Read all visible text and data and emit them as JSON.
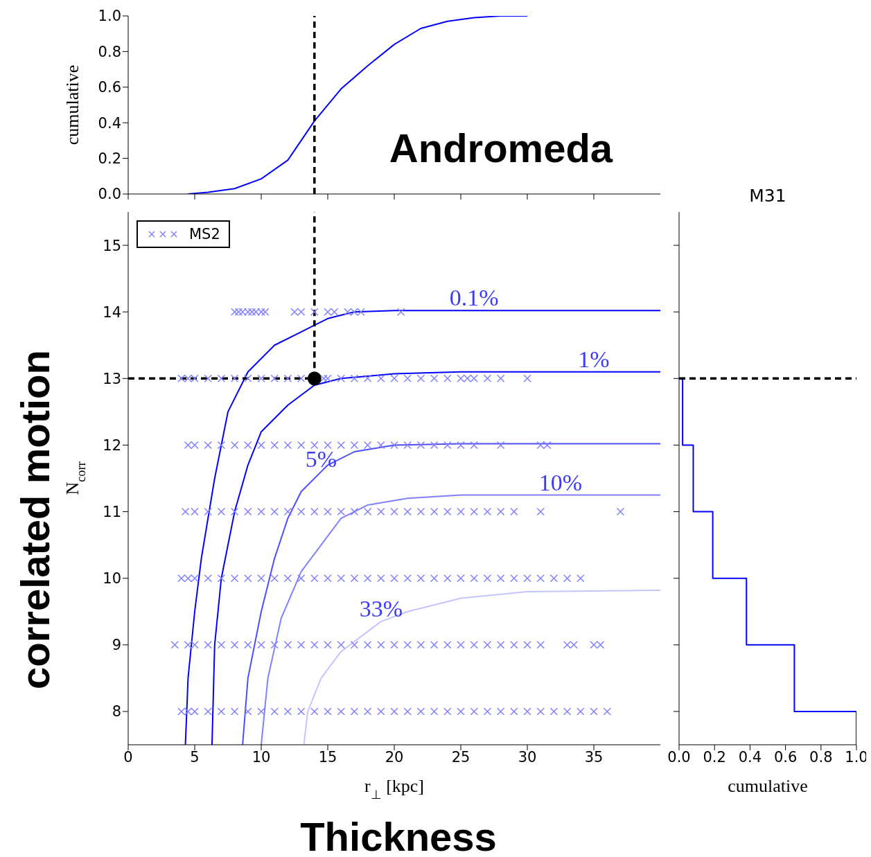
{
  "chart_data": [
    {
      "type": "line",
      "annotations": [
        "Andromeda"
      ],
      "ylabel": "cumulative",
      "x": [
        4.5,
        6,
        8,
        10,
        12,
        14,
        16,
        18,
        20,
        22,
        24,
        26,
        28,
        30
      ],
      "values": [
        0,
        0.01,
        0.03,
        0.085,
        0.19,
        0.41,
        0.59,
        0.72,
        0.84,
        0.93,
        0.97,
        0.99,
        1,
        1
      ],
      "color": "#0000ff",
      "xlim": [
        0,
        40
      ],
      "ylim": [
        0,
        1
      ],
      "xticks": [
        0,
        5,
        10,
        15,
        20,
        25,
        30,
        35
      ],
      "yticks": [
        {
          "value": 0,
          "label": "0.0"
        },
        {
          "value": 0.2,
          "label": "0.2"
        },
        {
          "value": 0.4,
          "label": "0.4"
        },
        {
          "value": 0.6,
          "label": "0.6"
        },
        {
          "value": 0.8,
          "label": "0.8"
        },
        {
          "value": 1,
          "label": "1.0"
        }
      ],
      "tick_labels": "y",
      "ref_lines": [
        {
          "axis": "x",
          "value": 14,
          "color": "#000000",
          "line_style": "dashed"
        }
      ]
    },
    {
      "type": "scatter",
      "xlabel": "r$_{⊥}$ [kpc]",
      "ylabel": "N$_{corr}$",
      "legend": "top left",
      "marker": "cross",
      "xlim": [
        0,
        40
      ],
      "ylim": [
        7.5,
        15.5
      ],
      "xticks": [
        0,
        5,
        10,
        15,
        20,
        25,
        30,
        35
      ],
      "yticks": [
        8,
        9,
        10,
        11,
        12,
        13,
        14,
        15
      ],
      "series": [
        {
          "name": "MS2",
          "color": "#8080ff",
          "x": [
            8,
            8.3,
            8.6,
            9,
            9.3,
            9.6,
            10,
            10.3,
            12.5,
            13,
            14,
            15,
            15.5,
            16.5,
            17,
            17.5,
            20.5
          ],
          "values": [
            14,
            14,
            14,
            14,
            14,
            14,
            14,
            14,
            14,
            14,
            14,
            14,
            14,
            14,
            14,
            14,
            14
          ]
        },
        {
          "color": "#8080ff",
          "x": [
            4,
            4.5,
            5,
            6,
            7,
            8,
            9,
            10,
            11,
            12,
            13,
            14.7,
            15,
            16,
            17,
            18,
            19,
            20,
            21,
            22,
            23,
            24,
            25,
            25.5,
            26,
            27,
            28,
            30
          ],
          "values": [
            13,
            13,
            13,
            13,
            13,
            13,
            13,
            13,
            13,
            13,
            13,
            13,
            13,
            13,
            13,
            13,
            13,
            13,
            13,
            13,
            13,
            13,
            13,
            13,
            13,
            13,
            13,
            13
          ]
        },
        {
          "color": "#8080ff",
          "x": [
            4.5,
            5,
            6,
            7,
            8,
            9,
            10,
            11,
            12,
            13,
            14,
            15,
            16,
            17,
            18,
            19,
            20,
            21,
            22,
            23,
            24,
            25,
            26,
            28,
            31,
            31.5
          ],
          "values": [
            12,
            12,
            12,
            12,
            12,
            12,
            12,
            12,
            12,
            12,
            12,
            12,
            12,
            12,
            12,
            12,
            12,
            12,
            12,
            12,
            12,
            12,
            12,
            12,
            12,
            12
          ]
        },
        {
          "color": "#8080ff",
          "x": [
            4.3,
            5,
            6,
            7,
            8,
            9,
            10,
            11,
            12,
            13,
            14,
            15,
            16,
            17,
            18,
            19,
            20,
            21,
            22,
            23,
            24,
            25,
            26,
            27,
            28,
            29,
            31,
            37
          ],
          "values": [
            11,
            11,
            11,
            11,
            11,
            11,
            11,
            11,
            11,
            11,
            11,
            11,
            11,
            11,
            11,
            11,
            11,
            11,
            11,
            11,
            11,
            11,
            11,
            11,
            11,
            11,
            11,
            11
          ]
        },
        {
          "color": "#8080ff",
          "x": [
            4,
            4.5,
            5,
            6,
            7,
            8,
            9,
            10,
            11,
            12,
            13,
            14,
            15,
            16,
            17,
            18,
            19,
            20,
            21,
            22,
            23,
            24,
            25,
            26,
            27,
            28,
            29,
            30,
            31,
            32,
            33,
            34
          ],
          "values": [
            10,
            10,
            10,
            10,
            10,
            10,
            10,
            10,
            10,
            10,
            10,
            10,
            10,
            10,
            10,
            10,
            10,
            10,
            10,
            10,
            10,
            10,
            10,
            10,
            10,
            10,
            10,
            10,
            10,
            10,
            10,
            10
          ]
        },
        {
          "color": "#8080ff",
          "x": [
            3.5,
            4.5,
            5,
            6,
            7,
            8,
            9,
            10,
            11,
            12,
            13,
            14,
            15,
            16,
            17,
            18,
            19,
            20,
            21,
            22,
            23,
            24,
            25,
            26,
            27,
            28,
            29,
            30,
            31,
            33,
            33.5,
            35,
            35.5
          ],
          "values": [
            9,
            9,
            9,
            9,
            9,
            9,
            9,
            9,
            9,
            9,
            9,
            9,
            9,
            9,
            9,
            9,
            9,
            9,
            9,
            9,
            9,
            9,
            9,
            9,
            9,
            9,
            9,
            9,
            9,
            9,
            9,
            9,
            9
          ]
        },
        {
          "color": "#8080ff",
          "x": [
            4,
            4.5,
            5,
            6,
            7,
            8,
            9,
            10,
            11,
            12,
            13,
            14,
            15,
            16,
            17,
            18,
            19,
            20,
            21,
            22,
            23,
            24,
            25,
            26,
            27,
            28,
            29,
            30,
            31,
            32,
            33,
            34,
            35,
            36
          ],
          "values": [
            8,
            8,
            8,
            8,
            8,
            8,
            8,
            8,
            8,
            8,
            8,
            8,
            8,
            8,
            8,
            8,
            8,
            8,
            8,
            8,
            8,
            8,
            8,
            8,
            8,
            8,
            8,
            8,
            8,
            8,
            8,
            8,
            8,
            8
          ]
        },
        {
          "type": "line",
          "marker": "none",
          "color": "#0000ff",
          "x": [
            4.3,
            4.5,
            5,
            5.5,
            6.5,
            7.5,
            9,
            11,
            13,
            14,
            15,
            17,
            20,
            25,
            30,
            40
          ],
          "values": [
            7.5,
            8.5,
            9.5,
            10.3,
            11.5,
            12.5,
            13.1,
            13.5,
            13.7,
            13.8,
            13.9,
            14,
            14.02,
            14.02,
            14.02,
            14.02
          ]
        },
        {
          "type": "line",
          "marker": "none",
          "color": "#0000ff",
          "x": [
            6.3,
            6.5,
            7,
            8,
            9,
            10,
            12,
            14,
            16,
            20,
            25,
            40
          ],
          "values": [
            7.5,
            9,
            10,
            11,
            11.7,
            12.2,
            12.6,
            12.9,
            13,
            13.07,
            13.1,
            13.1
          ]
        },
        {
          "type": "line",
          "marker": "none",
          "color": "#4d4dff",
          "x": [
            8.6,
            9,
            10,
            11,
            12,
            13,
            14.5,
            15,
            17,
            20,
            25,
            40
          ],
          "values": [
            7.5,
            8.5,
            9.5,
            10.3,
            10.9,
            11.3,
            11.6,
            11.7,
            11.9,
            12,
            12.02,
            12.02
          ]
        },
        {
          "type": "line",
          "marker": "none",
          "color": "#8080ff",
          "x": [
            10,
            10.5,
            11.5,
            13,
            14.5,
            16,
            18,
            21,
            25,
            40
          ],
          "values": [
            7.5,
            8.5,
            9.4,
            10.1,
            10.5,
            10.9,
            11.1,
            11.2,
            11.25,
            11.25
          ]
        },
        {
          "type": "line",
          "marker": "none",
          "color": "#c4c4ff",
          "x": [
            13.2,
            13.5,
            14.5,
            16,
            18,
            19,
            21,
            25,
            30,
            40
          ],
          "values": [
            7.5,
            8,
            8.5,
            8.9,
            9.2,
            9.35,
            9.5,
            9.7,
            9.8,
            9.82
          ]
        },
        {
          "type": "scatter",
          "marker": "circle",
          "color": "#000000",
          "x": [
            14
          ],
          "values": [
            13
          ]
        }
      ],
      "annotations": [
        {
          "text": "0.1%",
          "x": 26,
          "y": 14.02
        },
        {
          "text": "1%",
          "x": 35,
          "y": 13.1
        },
        {
          "text": "5%",
          "x": 14.5,
          "y": 11.6
        },
        {
          "text": "10%",
          "x": 32.5,
          "y": 11.25
        },
        {
          "text": "33%",
          "x": 19,
          "y": 9.35
        },
        "correlated motion",
        "Thickness"
      ],
      "ref_lines": [
        {
          "axis": "x",
          "value": 14,
          "color": "#000000",
          "line_style": "dashed"
        },
        {
          "axis": "y",
          "value": 13,
          "color": "#000000",
          "line_style": "dashed"
        }
      ]
    },
    {
      "type": "line",
      "title": "M31",
      "xlabel": "cumulative",
      "x": [
        0.02,
        0.02,
        0.08,
        0.08,
        0.19,
        0.19,
        0.38,
        0.38,
        0.65,
        0.65,
        1,
        1
      ],
      "values": [
        13,
        12,
        12,
        11,
        11,
        10,
        10,
        9,
        9,
        8,
        8,
        7.5
      ],
      "color": "#0000ff",
      "xlim": [
        0,
        1
      ],
      "ylim": [
        7.5,
        15.5
      ],
      "xticks": [
        {
          "value": 0,
          "label": "0.0"
        },
        {
          "value": 0.2,
          "label": "0.2"
        },
        {
          "value": 0.4,
          "label": "0.4"
        },
        {
          "value": 0.6,
          "label": "0.6"
        },
        {
          "value": 0.8,
          "label": "0.8"
        },
        {
          "value": 1,
          "label": "1.0"
        }
      ],
      "yticks": [
        8,
        9,
        10,
        11,
        12,
        13,
        14,
        15
      ],
      "tick_labels": "x",
      "ref_lines": [
        {
          "axis": "y",
          "value": 13,
          "color": "#000000",
          "line_style": "dashed"
        }
      ]
    }
  ]
}
